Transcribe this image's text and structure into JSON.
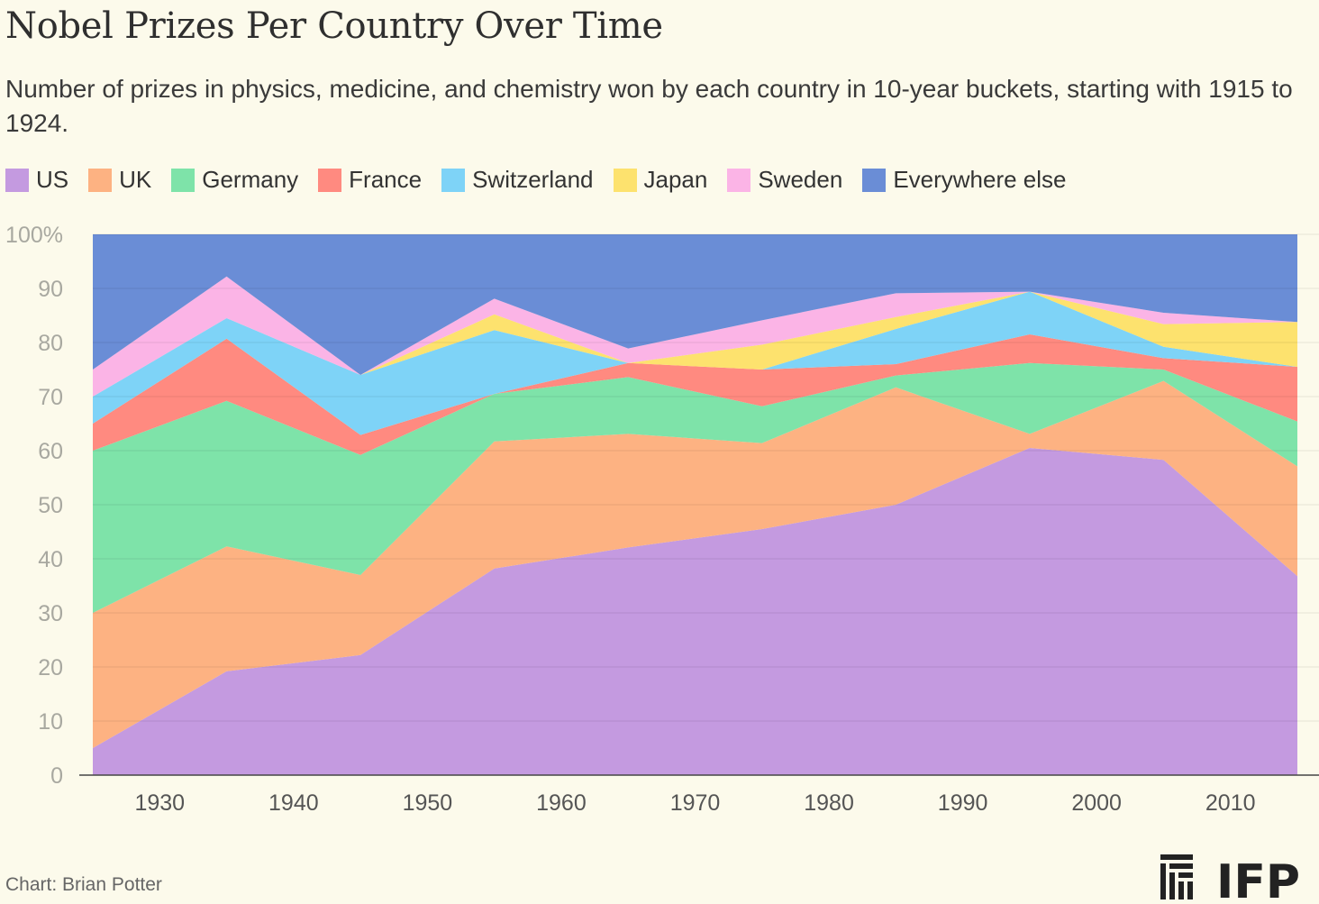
{
  "title": "Nobel Prizes Per Country Over Time",
  "subtitle": "Number of prizes in physics, medicine, and chemistry won by each country in 10-year buckets, starting with 1915 to 1924.",
  "credit": "Chart: Brian Potter",
  "logo_text": "IFP",
  "chart_data": {
    "type": "area",
    "stacked": true,
    "x": [
      1925,
      1935,
      1945,
      1955,
      1965,
      1975,
      1985,
      1995,
      2005,
      2015
    ],
    "xticks": [
      1930,
      1940,
      1950,
      1960,
      1970,
      1980,
      1990,
      2000,
      2010
    ],
    "xticklabels": [
      "1930",
      "1940",
      "1950",
      "1960",
      "1970",
      "1980",
      "1990",
      "2000",
      "2010"
    ],
    "xlim": [
      1925,
      2015
    ],
    "ylim": [
      0,
      100
    ],
    "yticks": [
      0,
      10,
      20,
      30,
      40,
      50,
      60,
      70,
      80,
      90,
      100
    ],
    "yticklabels": [
      "0",
      "10",
      "20",
      "30",
      "40",
      "50",
      "60",
      "70",
      "80",
      "90",
      "100%"
    ],
    "grid": true,
    "legend_position": "top",
    "series": [
      {
        "name": "US",
        "color": "#c49ae0",
        "values": [
          5,
          19.2,
          22.2,
          38.2,
          42.1,
          45.5,
          50,
          60.5,
          58.3,
          36.8
        ]
      },
      {
        "name": "UK",
        "color": "#fdb282",
        "values": [
          25,
          23.1,
          14.8,
          23.5,
          21,
          15.9,
          21.7,
          2.6,
          14.6,
          20.3
        ]
      },
      {
        "name": "Germany",
        "color": "#7ee3a9",
        "values": [
          30,
          26.9,
          22.2,
          8.8,
          10.5,
          6.8,
          2.2,
          13.1,
          2.1,
          8.3
        ]
      },
      {
        "name": "France",
        "color": "#ff8a80",
        "values": [
          5,
          11.5,
          3.7,
          0,
          2.6,
          6.8,
          2.1,
          5.3,
          2.1,
          10.1
        ]
      },
      {
        "name": "Switzerland",
        "color": "#7ed3f7",
        "values": [
          5,
          3.8,
          11.1,
          11.8,
          0,
          0,
          6.5,
          7.9,
          2.1,
          0
        ]
      },
      {
        "name": "Japan",
        "color": "#fde26e",
        "values": [
          0,
          0,
          0,
          2.9,
          0,
          4.6,
          2.2,
          0,
          4.2,
          8.3
        ]
      },
      {
        "name": "Sweden",
        "color": "#fbb4e6",
        "values": [
          5,
          7.7,
          0,
          2.9,
          2.7,
          4.5,
          4.4,
          0,
          2.1,
          0
        ]
      },
      {
        "name": "Everywhere else",
        "color": "#6a8dd6",
        "values": [
          25,
          7.8,
          26,
          11.9,
          21.1,
          15.9,
          10.9,
          10.6,
          14.5,
          16.2
        ]
      }
    ]
  }
}
